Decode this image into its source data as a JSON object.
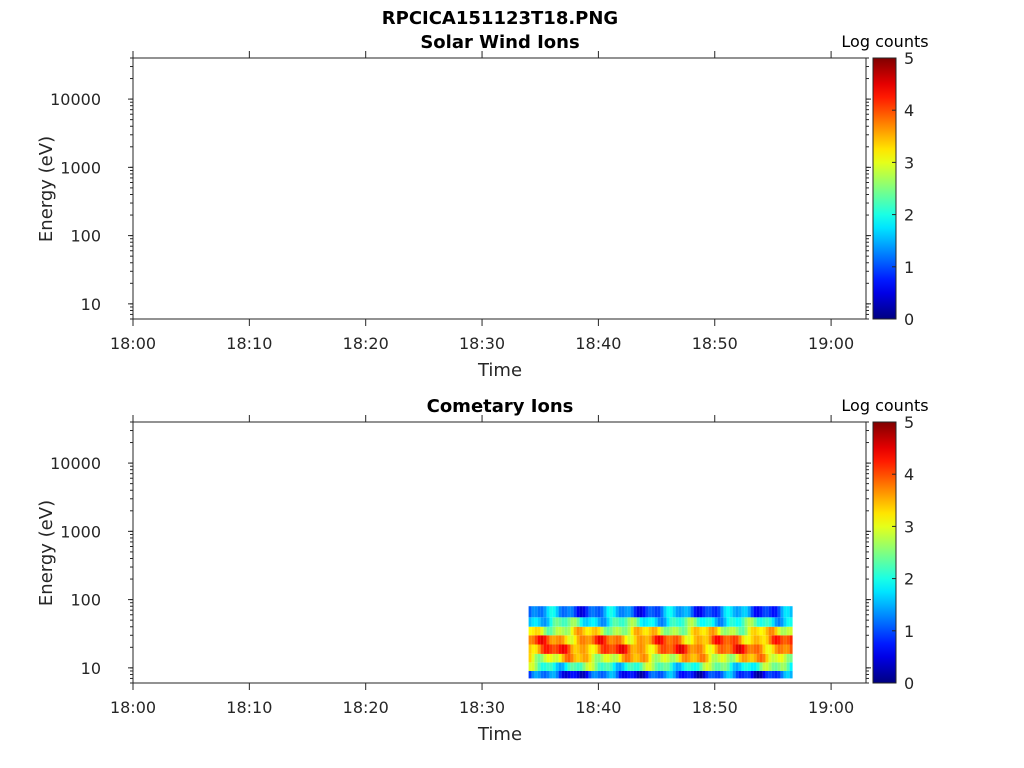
{
  "figure": {
    "title": "RPCICA151123T18.PNG"
  },
  "chart_data": [
    {
      "type": "heatmap",
      "title": "Solar Wind Ions",
      "xlabel": "Time",
      "ylabel": "Energy (eV)",
      "x_ticks": [
        "18:00",
        "18:10",
        "18:20",
        "18:30",
        "18:40",
        "18:50",
        "19:00"
      ],
      "x_range": [
        "18:00",
        "19:03"
      ],
      "y_scale": "log",
      "y_ticks": [
        "10",
        "100",
        "1000",
        "10000"
      ],
      "y_range": [
        6,
        40000
      ],
      "colorbar": {
        "title": "Log counts",
        "ticks": [
          "0",
          "1",
          "2",
          "3",
          "4",
          "5"
        ],
        "range": [
          0,
          5
        ],
        "colormap": "jet"
      },
      "data_present": false,
      "bands": []
    },
    {
      "type": "heatmap",
      "title": "Cometary Ions",
      "xlabel": "Time",
      "ylabel": "Energy (eV)",
      "x_ticks": [
        "18:00",
        "18:10",
        "18:20",
        "18:30",
        "18:40",
        "18:50",
        "19:00"
      ],
      "x_range": [
        "18:00",
        "19:03"
      ],
      "y_scale": "log",
      "y_ticks": [
        "10",
        "100",
        "1000",
        "10000"
      ],
      "y_range": [
        6,
        40000
      ],
      "colorbar": {
        "title": "Log counts",
        "ticks": [
          "0",
          "1",
          "2",
          "3",
          "4",
          "5"
        ],
        "range": [
          0,
          5
        ],
        "colormap": "jet"
      },
      "data_present": true,
      "data_time_span": [
        "18:34",
        "18:56.6"
      ],
      "data_energy_span": [
        7,
        80
      ],
      "bands": [
        {
          "energy_eV": [
            7,
            9
          ],
          "log_counts": 0.9
        },
        {
          "energy_eV": [
            9,
            12
          ],
          "log_counts": 2.2
        },
        {
          "energy_eV": [
            12,
            16
          ],
          "log_counts": 3.2
        },
        {
          "energy_eV": [
            16,
            22
          ],
          "log_counts": 3.8
        },
        {
          "energy_eV": [
            22,
            30
          ],
          "log_counts": 3.7
        },
        {
          "energy_eV": [
            30,
            40
          ],
          "log_counts": 3.0
        },
        {
          "energy_eV": [
            40,
            55
          ],
          "log_counts": 2.0
        },
        {
          "energy_eV": [
            55,
            80
          ],
          "log_counts": 1.2
        }
      ]
    }
  ]
}
